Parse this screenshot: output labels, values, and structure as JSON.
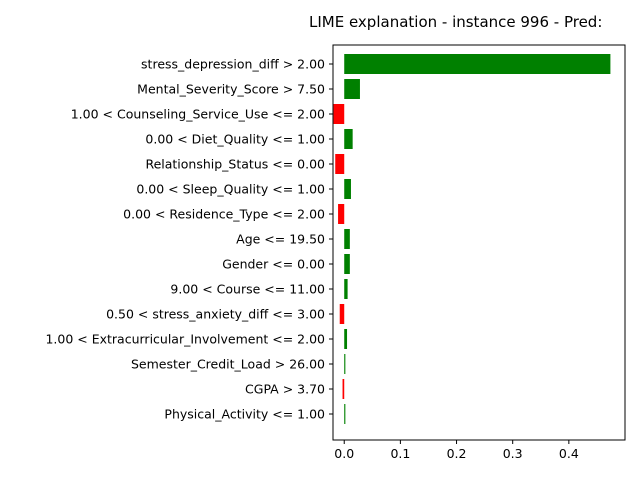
{
  "chart_data": {
    "type": "bar",
    "orientation": "horizontal",
    "title": "LIME explanation - instance 996 - Pred:",
    "xlabel": "",
    "ylabel": "",
    "xlim": [
      -0.02,
      0.5
    ],
    "xticks": [
      0.0,
      0.1,
      0.2,
      0.3,
      0.4
    ],
    "xtick_labels": [
      "0.0",
      "0.1",
      "0.2",
      "0.3",
      "0.4"
    ],
    "grid": false,
    "positive_color": "#008000",
    "negative_color": "#ff0000",
    "categories": [
      "stress_depression_diff > 2.00",
      "Mental_Severity_Score > 7.50",
      "1.00 < Counseling_Service_Use <= 2.00",
      "0.00 < Diet_Quality <= 1.00",
      "Relationship_Status <= 0.00",
      "0.00 < Sleep_Quality <= 1.00",
      "0.00 < Residence_Type <= 2.00",
      "Age <= 19.50",
      "Gender <= 0.00",
      "9.00 < Course <= 11.00",
      "0.50 < stress_anxiety_diff <= 3.00",
      "1.00 < Extracurricular_Involvement <= 2.00",
      "Semester_Credit_Load > 26.00",
      "CGPA > 3.70",
      "Physical_Activity <= 1.00"
    ],
    "values": [
      0.474,
      0.028,
      -0.019,
      0.015,
      -0.016,
      0.012,
      -0.011,
      0.01,
      0.01,
      0.006,
      -0.008,
      0.005,
      0.002,
      -0.003,
      0.002
    ]
  }
}
